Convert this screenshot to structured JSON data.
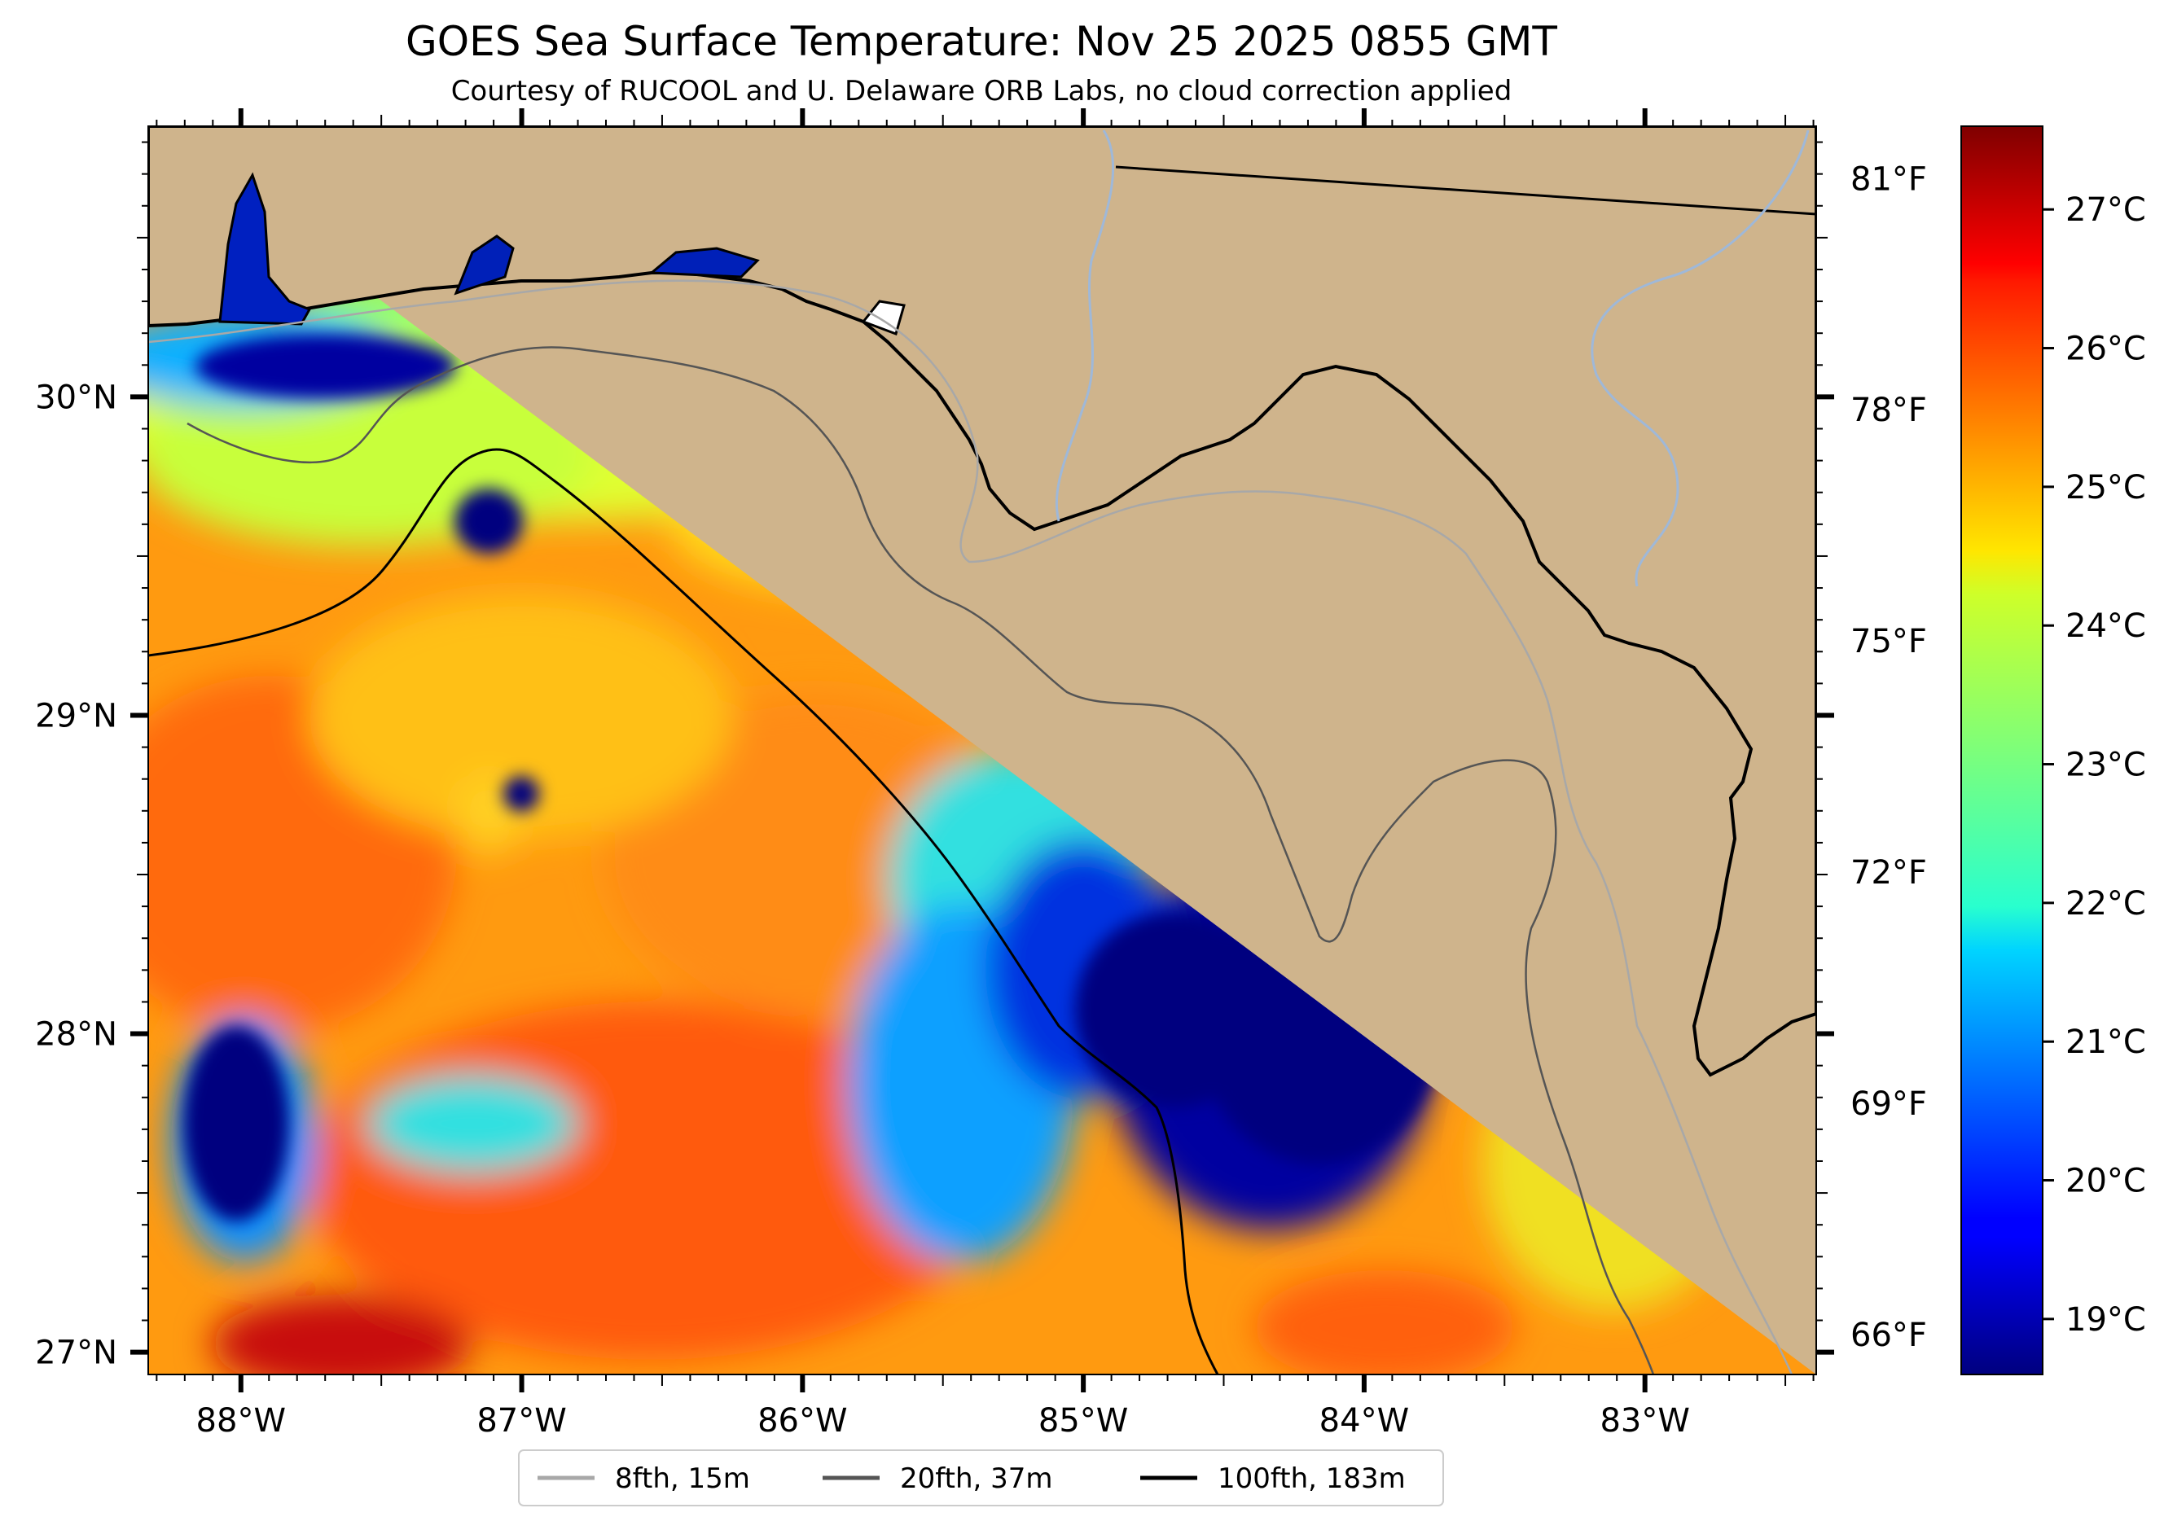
{
  "title": "GOES Sea Surface Temperature: Nov 25 2025 0855 GMT",
  "subtitle": "Courtesy of RUCOOL and U. Delaware ORB Labs, no cloud correction applied",
  "map": {
    "lon_range": [
      -88.33,
      -82.39
    ],
    "lat_range": [
      26.93,
      30.85
    ],
    "lon_ticks": [
      {
        "value": -88,
        "label": "88°W"
      },
      {
        "value": -87,
        "label": "87°W"
      },
      {
        "value": -86,
        "label": "86°W"
      },
      {
        "value": -85,
        "label": "85°W"
      },
      {
        "value": -84,
        "label": "84°W"
      },
      {
        "value": -83,
        "label": "83°W"
      }
    ],
    "lat_ticks": [
      {
        "value": 30,
        "label": "30°N"
      },
      {
        "value": 29,
        "label": "29°N"
      },
      {
        "value": 28,
        "label": "28°N"
      },
      {
        "value": 27,
        "label": "27°N"
      }
    ],
    "land_color": "#cfb48c",
    "river_color": "#9fb8d8"
  },
  "colorbar": {
    "colormap": "jet",
    "range_c": [
      18.6,
      27.6
    ],
    "celsius_ticks": [
      {
        "value": 19,
        "label": "19°C"
      },
      {
        "value": 20,
        "label": "20°C"
      },
      {
        "value": 21,
        "label": "21°C"
      },
      {
        "value": 22,
        "label": "22°C"
      },
      {
        "value": 23,
        "label": "23°C"
      },
      {
        "value": 24,
        "label": "24°C"
      },
      {
        "value": 25,
        "label": "25°C"
      },
      {
        "value": 26,
        "label": "26°C"
      },
      {
        "value": 27,
        "label": "27°C"
      }
    ],
    "fahrenheit_ticks": [
      {
        "value": 66,
        "label": "66°F"
      },
      {
        "value": 69,
        "label": "69°F"
      },
      {
        "value": 72,
        "label": "72°F"
      },
      {
        "value": 75,
        "label": "75°F"
      },
      {
        "value": 78,
        "label": "78°F"
      },
      {
        "value": 81,
        "label": "81°F"
      }
    ]
  },
  "legend": {
    "items": [
      {
        "label": "8fth, 15m",
        "color": "#a8a8a8"
      },
      {
        "label": "20fth, 37m",
        "color": "#555555"
      },
      {
        "label": "100fth, 183m",
        "color": "#000000"
      }
    ]
  }
}
